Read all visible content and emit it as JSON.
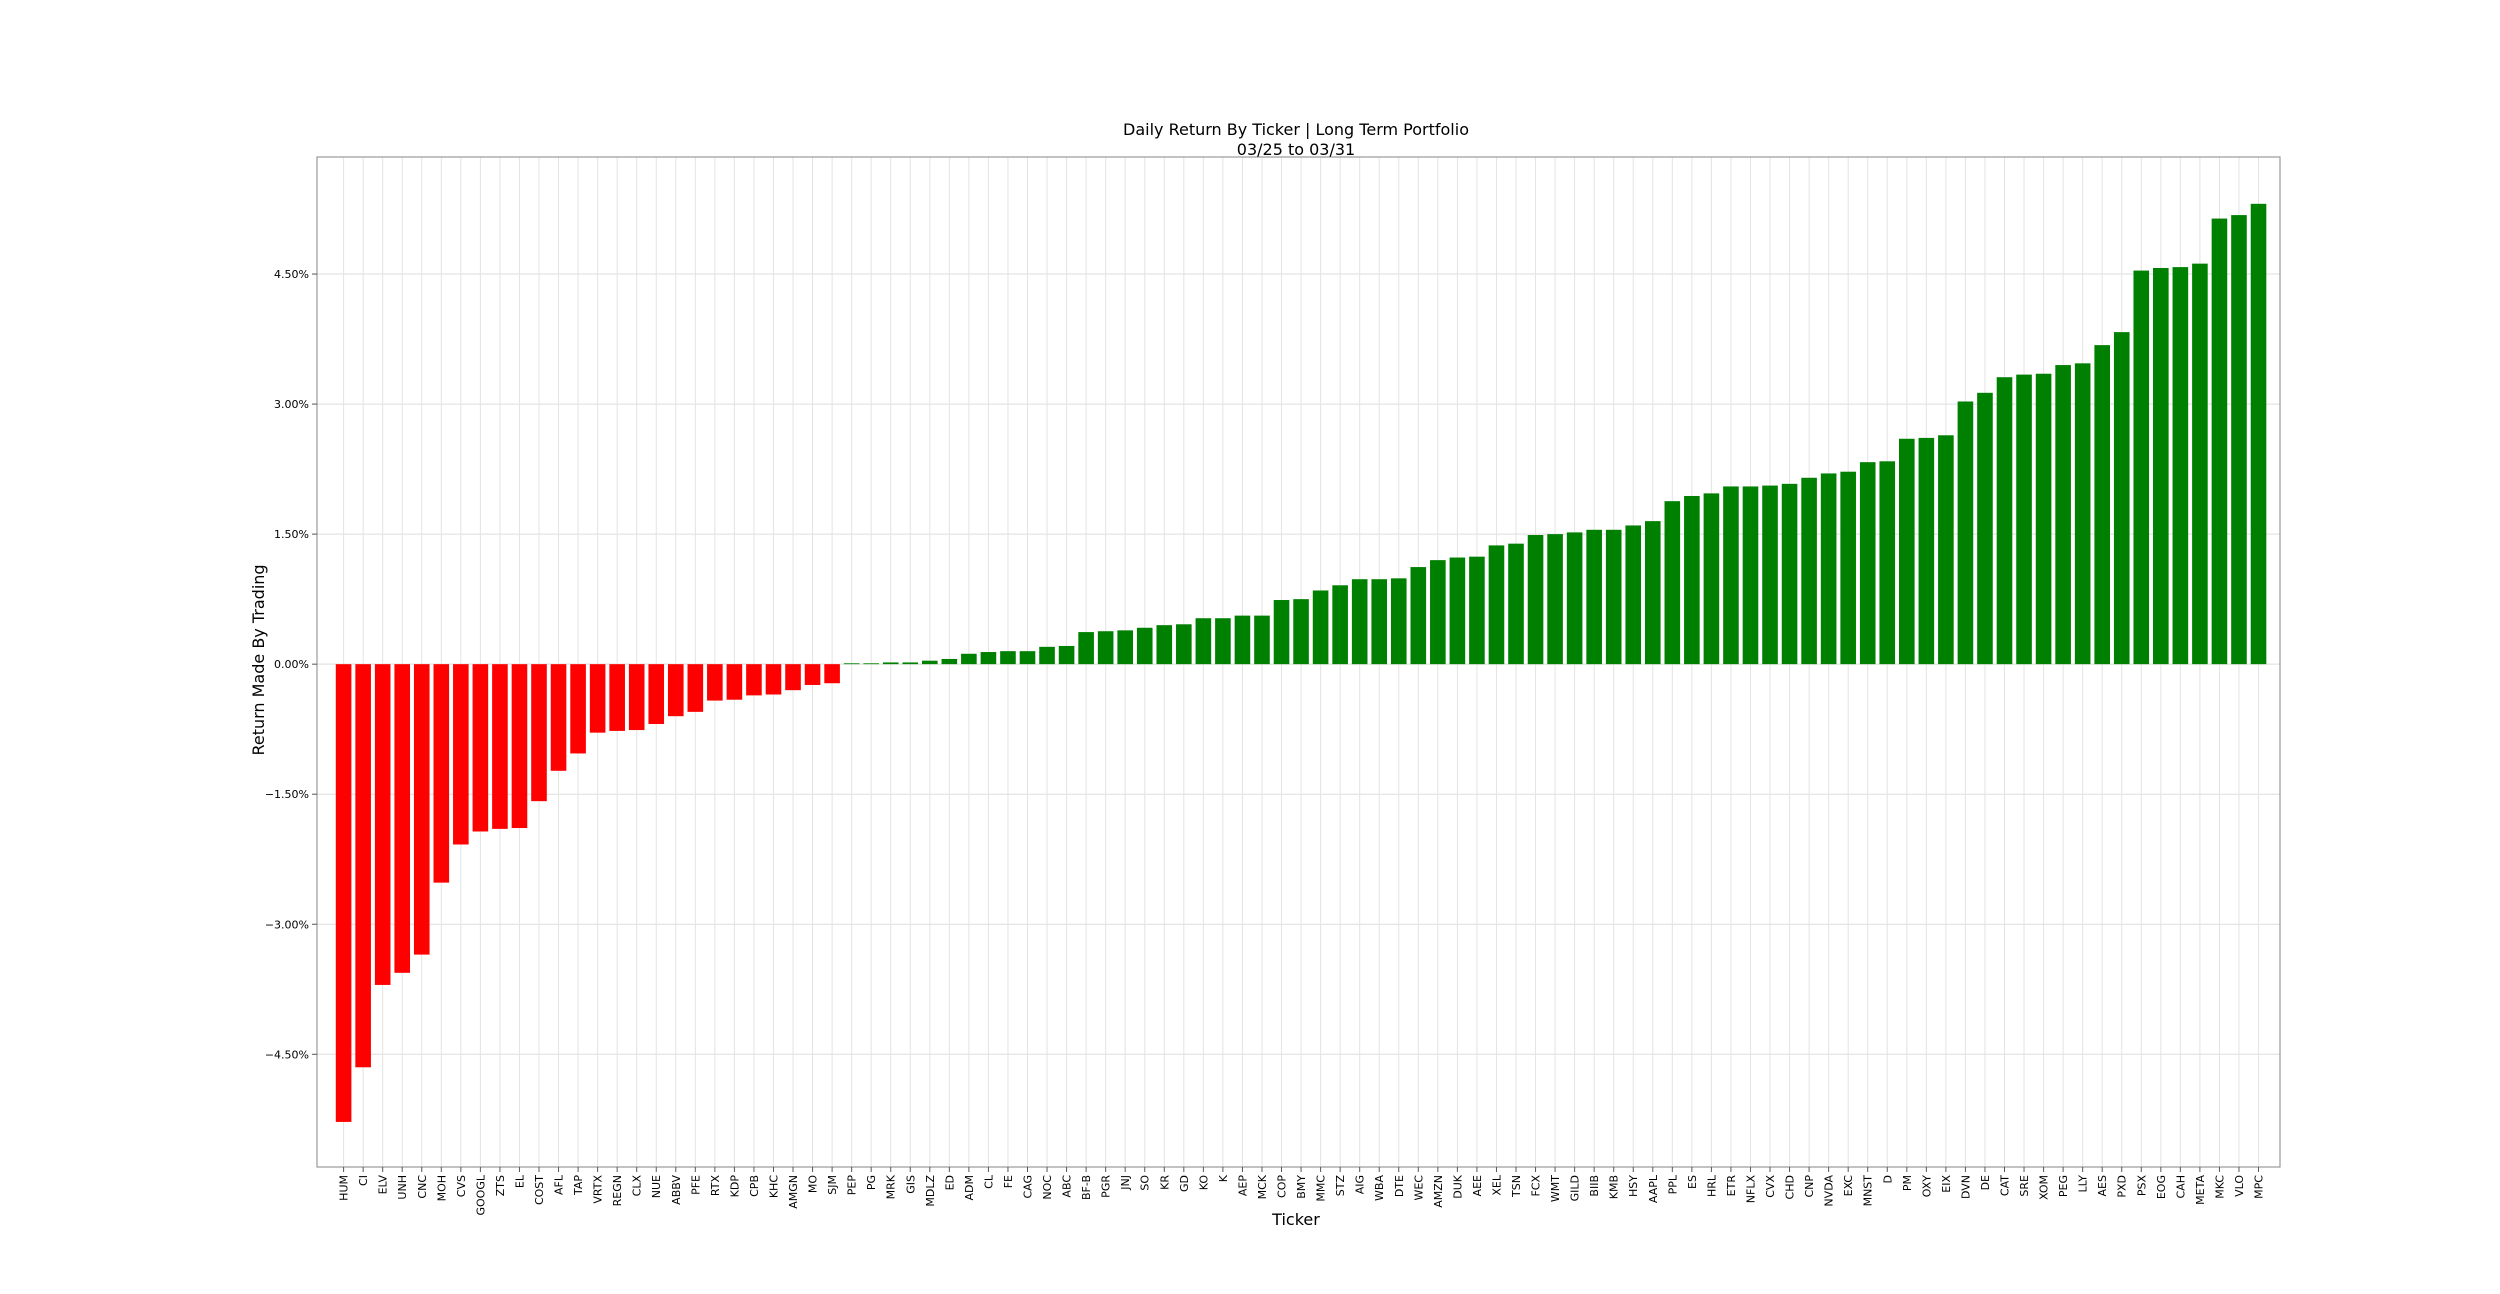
{
  "chart_data": {
    "type": "bar",
    "title": "Daily Return By Ticker | Long Term Portfolio",
    "subtitle": "03/25 to 03/31",
    "xlabel": "Ticker",
    "ylabel": "Return Made By Trading",
    "ylim": [
      -5.8,
      5.85
    ],
    "yticks": [
      -4.5,
      -3.0,
      -1.5,
      0.0,
      1.5,
      3.0,
      4.5
    ],
    "ytick_labels": [
      "−4.50%",
      "−3.00%",
      "−1.50%",
      "0.00%",
      "1.50%",
      "3.00%",
      "4.50%"
    ],
    "grid": true,
    "colors": {
      "negative": "#ff0000",
      "positive": "#008000"
    },
    "categories": [
      "HUM",
      "CI",
      "ELV",
      "UNH",
      "CNC",
      "MOH",
      "CVS",
      "GOOGL",
      "ZTS",
      "EL",
      "COST",
      "AFL",
      "TAP",
      "VRTX",
      "REGN",
      "CLX",
      "NUE",
      "ABBV",
      "PFE",
      "RTX",
      "KDP",
      "CPB",
      "KHC",
      "AMGN",
      "MO",
      "SJM",
      "PEP",
      "PG",
      "MRK",
      "GIS",
      "MDLZ",
      "ED",
      "ADM",
      "CL",
      "FE",
      "CAG",
      "NOC",
      "ABC",
      "BF-B",
      "PGR",
      "JNJ",
      "SO",
      "KR",
      "GD",
      "KO",
      "K",
      "AEP",
      "MCK",
      "COP",
      "BMY",
      "MMC",
      "STZ",
      "AIG",
      "WBA",
      "DTE",
      "WEC",
      "AMZN",
      "DUK",
      "AEE",
      "XEL",
      "TSN",
      "FCX",
      "WMT",
      "GILD",
      "BIIB",
      "KMB",
      "HSY",
      "AAPL",
      "PPL",
      "ES",
      "HRL",
      "ETR",
      "NFLX",
      "CVX",
      "CHD",
      "CNP",
      "NVDA",
      "EXC",
      "MNST",
      "D",
      "PM",
      "OXY",
      "EIX",
      "DVN",
      "DE",
      "CAT",
      "SRE",
      "XOM",
      "PEG",
      "LLY",
      "AES",
      "PXD",
      "PSX",
      "EOG",
      "CAH",
      "META",
      "MKC",
      "VLO",
      "MPC"
    ],
    "values": [
      -5.28,
      -4.65,
      -3.7,
      -3.56,
      -3.35,
      -2.52,
      -2.08,
      -1.93,
      -1.9,
      -1.89,
      -1.58,
      -1.23,
      -1.03,
      -0.79,
      -0.77,
      -0.76,
      -0.69,
      -0.6,
      -0.55,
      -0.42,
      -0.41,
      -0.36,
      -0.35,
      -0.3,
      -0.24,
      -0.22,
      0.01,
      0.01,
      0.02,
      0.02,
      0.04,
      0.06,
      0.12,
      0.14,
      0.15,
      0.15,
      0.2,
      0.21,
      0.37,
      0.38,
      0.39,
      0.42,
      0.45,
      0.46,
      0.53,
      0.53,
      0.56,
      0.56,
      0.74,
      0.75,
      0.85,
      0.91,
      0.98,
      0.98,
      0.99,
      1.12,
      1.2,
      1.23,
      1.24,
      1.37,
      1.39,
      1.49,
      1.5,
      1.52,
      1.55,
      1.55,
      1.6,
      1.65,
      1.88,
      1.94,
      1.97,
      2.05,
      2.05,
      2.06,
      2.08,
      2.15,
      2.2,
      2.22,
      2.33,
      2.34,
      2.6,
      2.61,
      2.64,
      3.03,
      3.13,
      3.31,
      3.34,
      3.35,
      3.45,
      3.47,
      3.68,
      3.83,
      4.54,
      4.57,
      4.58,
      4.62,
      5.14,
      5.18,
      5.31
    ]
  }
}
